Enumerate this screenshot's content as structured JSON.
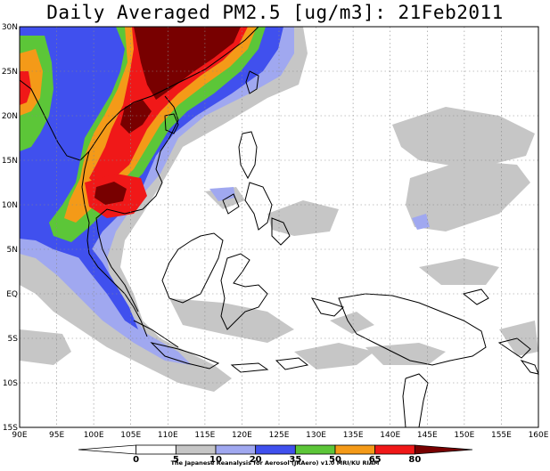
{
  "title": "Daily Averaged PM2.5 [ug/m3]: 21Feb2011",
  "credit": "The Japanese Reanalysis for Aerosol (JRAero) v1.0 MRI/KU RIAM",
  "map": {
    "lon_range": [
      90,
      160
    ],
    "lat_range": [
      -15,
      30
    ],
    "lon_ticks": [
      "90E",
      "95E",
      "100E",
      "105E",
      "110E",
      "115E",
      "120E",
      "125E",
      "130E",
      "135E",
      "140E",
      "145E",
      "150E",
      "155E",
      "160E"
    ],
    "lat_ticks": [
      "30N",
      "25N",
      "20N",
      "15N",
      "10N",
      "5N",
      "EQ",
      "5S",
      "10S",
      "15S"
    ],
    "grid": "dotted"
  },
  "colorbar": {
    "levels": [
      "0",
      "5",
      "10",
      "20",
      "35",
      "50",
      "65",
      "80"
    ],
    "colors": [
      "#ffffff",
      "#ffffff",
      "#c6c6c6",
      "#a0a8f0",
      "#4050ee",
      "#5cc638",
      "#f49a18",
      "#f01818",
      "#780000"
    ]
  }
}
